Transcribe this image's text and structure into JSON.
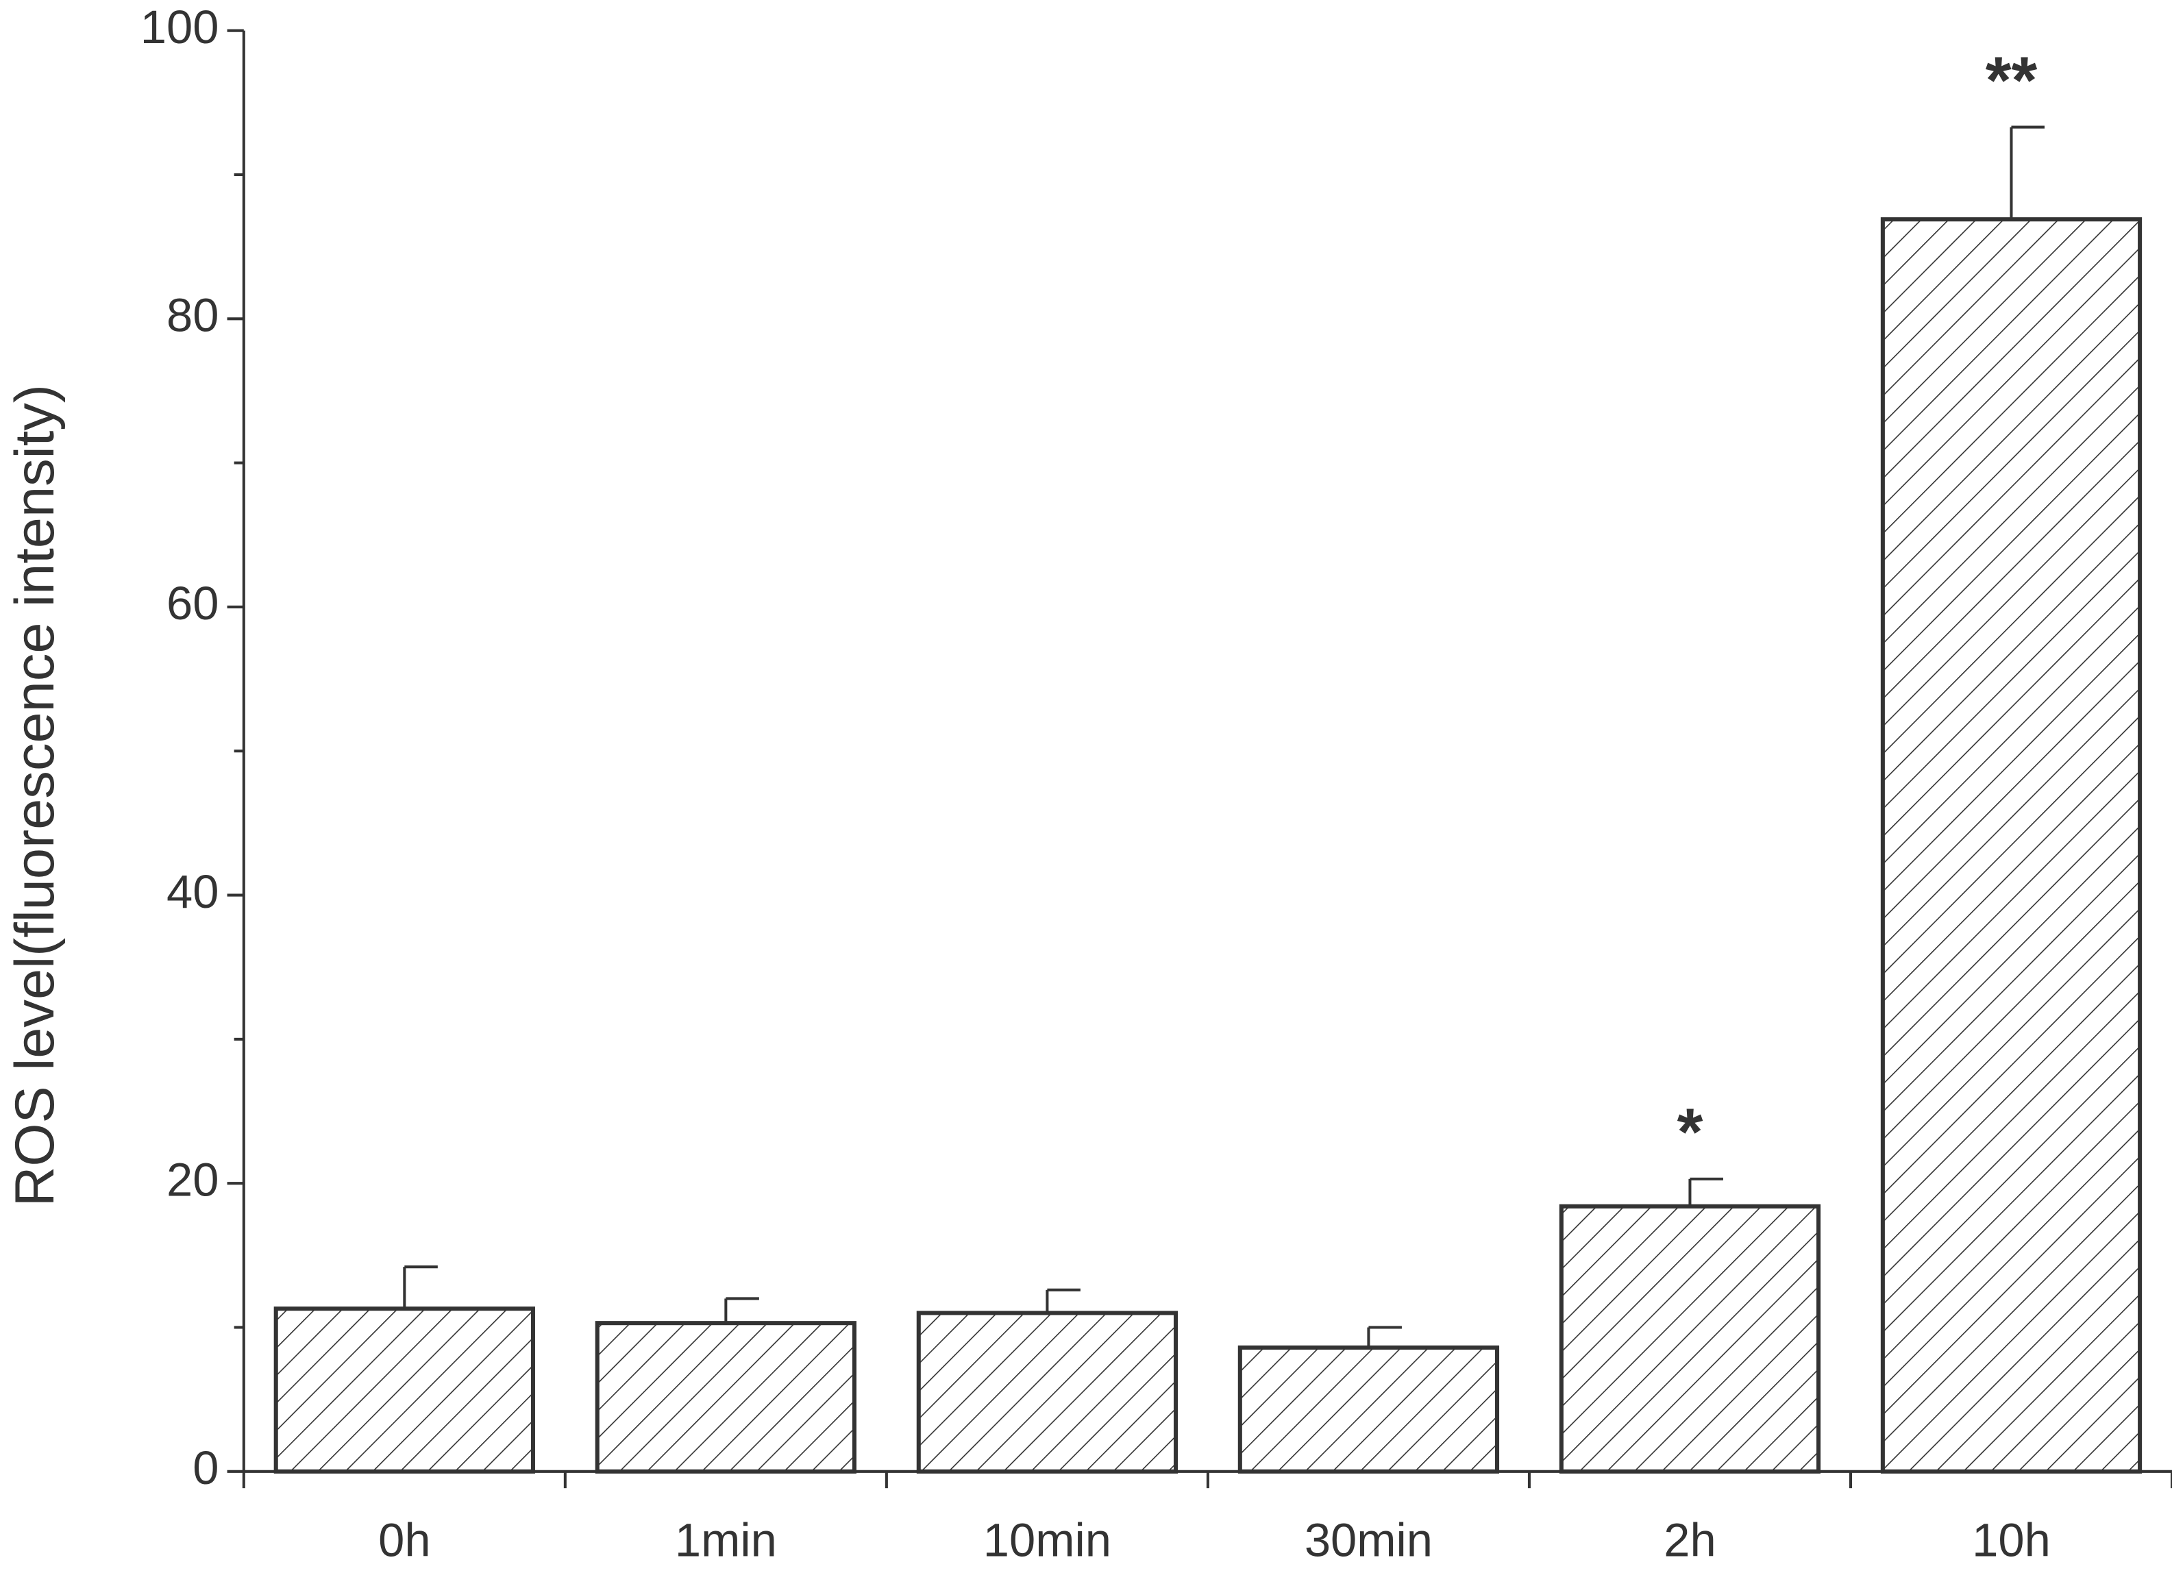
{
  "chart_data": {
    "type": "bar",
    "y_label": "ROS level(fluorescence intensity)",
    "categories": [
      "0h",
      "1min",
      "10min",
      "30min",
      "2h",
      "10h"
    ],
    "values": [
      11.3,
      10.3,
      11.0,
      8.6,
      18.4,
      86.9
    ],
    "errors": [
      2.9,
      1.7,
      1.6,
      1.4,
      1.9,
      6.4
    ],
    "annotations": [
      null,
      null,
      null,
      null,
      "*",
      "**"
    ],
    "color": "#333333",
    "hatch": "diagonal",
    "ylim": [
      0,
      100
    ],
    "yticks": [
      0,
      20,
      40,
      60,
      80,
      100
    ],
    "yminor": [
      10,
      30,
      50,
      70,
      90
    ],
    "grid": false
  }
}
